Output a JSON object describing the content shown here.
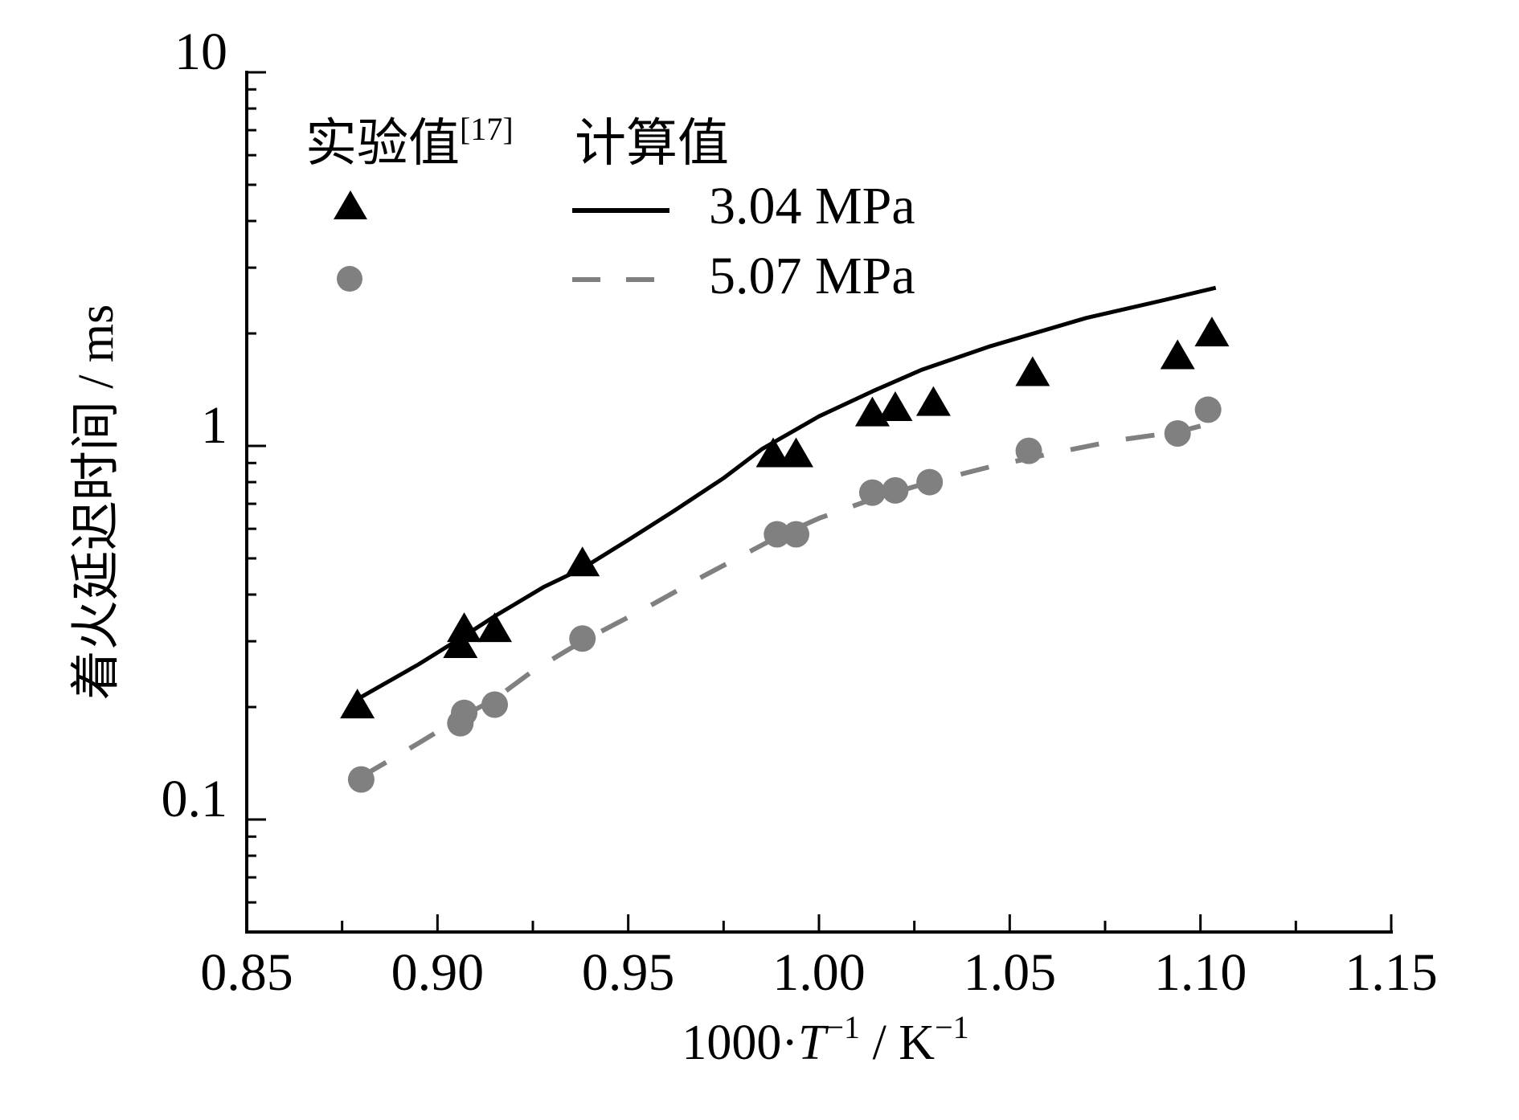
{
  "chart_data": {
    "type": "line+scatter",
    "title": "",
    "xlabel": {
      "base": "1000·",
      "var": "T",
      "exp1": "−1",
      "mid": " / K",
      "exp2": "−1"
    },
    "xlabel_text": "1000·T−1 / K−1",
    "ylabel": "着火延迟时间 / ms",
    "xlim": [
      0.85,
      1.15
    ],
    "ylim": [
      0.05,
      10
    ],
    "yscale": "log",
    "xticks": [
      0.85,
      0.9,
      0.95,
      1.0,
      1.05,
      1.1,
      1.15
    ],
    "xtick_labels": [
      "0.85",
      "0.90",
      "0.95",
      "1.00",
      "1.05",
      "1.10",
      "1.15"
    ],
    "xminor": [
      0.875,
      0.925,
      0.975,
      1.025,
      1.075,
      1.125
    ],
    "yticks": [
      0.1,
      1,
      10
    ],
    "ytick_labels": [
      "0.1",
      "1",
      "10"
    ],
    "yminor": [
      0.06,
      0.07,
      0.08,
      0.09,
      0.2,
      0.3,
      0.4,
      0.5,
      0.6,
      0.7,
      0.8,
      0.9,
      2,
      3,
      4,
      5,
      6,
      7,
      8,
      9
    ],
    "grid": false,
    "legend": {
      "placement": "top-left",
      "exp_header": "实验值",
      "exp_ref": "[17]",
      "calc_header": "计算值",
      "entries": [
        "3.04 MPa",
        "5.07 MPa"
      ]
    },
    "series": [
      {
        "name": "3.04 MPa",
        "kind": "experiment",
        "marker": "triangle",
        "color": "#000000",
        "x": [
          0.879,
          0.906,
          0.907,
          0.915,
          0.938,
          0.988,
          0.994,
          1.014,
          1.02,
          1.03,
          1.056,
          1.094,
          1.103
        ],
        "y": [
          0.2,
          0.29,
          0.32,
          0.32,
          0.48,
          0.94,
          0.94,
          1.21,
          1.25,
          1.29,
          1.55,
          1.72,
          1.98
        ]
      },
      {
        "name": "5.07 MPa",
        "kind": "experiment",
        "marker": "circle",
        "color": "#808080",
        "x": [
          0.88,
          0.906,
          0.907,
          0.915,
          0.938,
          0.989,
          0.994,
          1.014,
          1.02,
          1.029,
          1.055,
          1.094,
          1.102
        ],
        "y": [
          0.128,
          0.181,
          0.193,
          0.203,
          0.305,
          0.58,
          0.58,
          0.75,
          0.76,
          0.8,
          0.97,
          1.08,
          1.25
        ]
      },
      {
        "name": "3.04 MPa",
        "kind": "calculation",
        "line": "solid",
        "color": "#000000",
        "x": [
          0.879,
          0.895,
          0.907,
          0.915,
          0.928,
          0.938,
          0.95,
          0.962,
          0.975,
          0.985,
          1.0,
          1.014,
          1.027,
          1.045,
          1.07,
          1.09,
          1.104
        ],
        "y": [
          0.21,
          0.26,
          0.31,
          0.35,
          0.42,
          0.47,
          0.56,
          0.67,
          0.82,
          0.98,
          1.2,
          1.4,
          1.6,
          1.85,
          2.2,
          2.45,
          2.65
        ]
      },
      {
        "name": "5.07 MPa",
        "kind": "calculation",
        "line": "dashed",
        "color": "#808080",
        "x": [
          0.88,
          0.895,
          0.907,
          0.915,
          0.925,
          0.938,
          0.955,
          0.97,
          0.989,
          1.0,
          1.014,
          1.029,
          1.045,
          1.06,
          1.078,
          1.094,
          1.1
        ],
        "y": [
          0.13,
          0.16,
          0.19,
          0.21,
          0.25,
          0.3,
          0.37,
          0.45,
          0.57,
          0.64,
          0.72,
          0.8,
          0.88,
          0.95,
          1.035,
          1.09,
          1.13
        ]
      }
    ]
  }
}
